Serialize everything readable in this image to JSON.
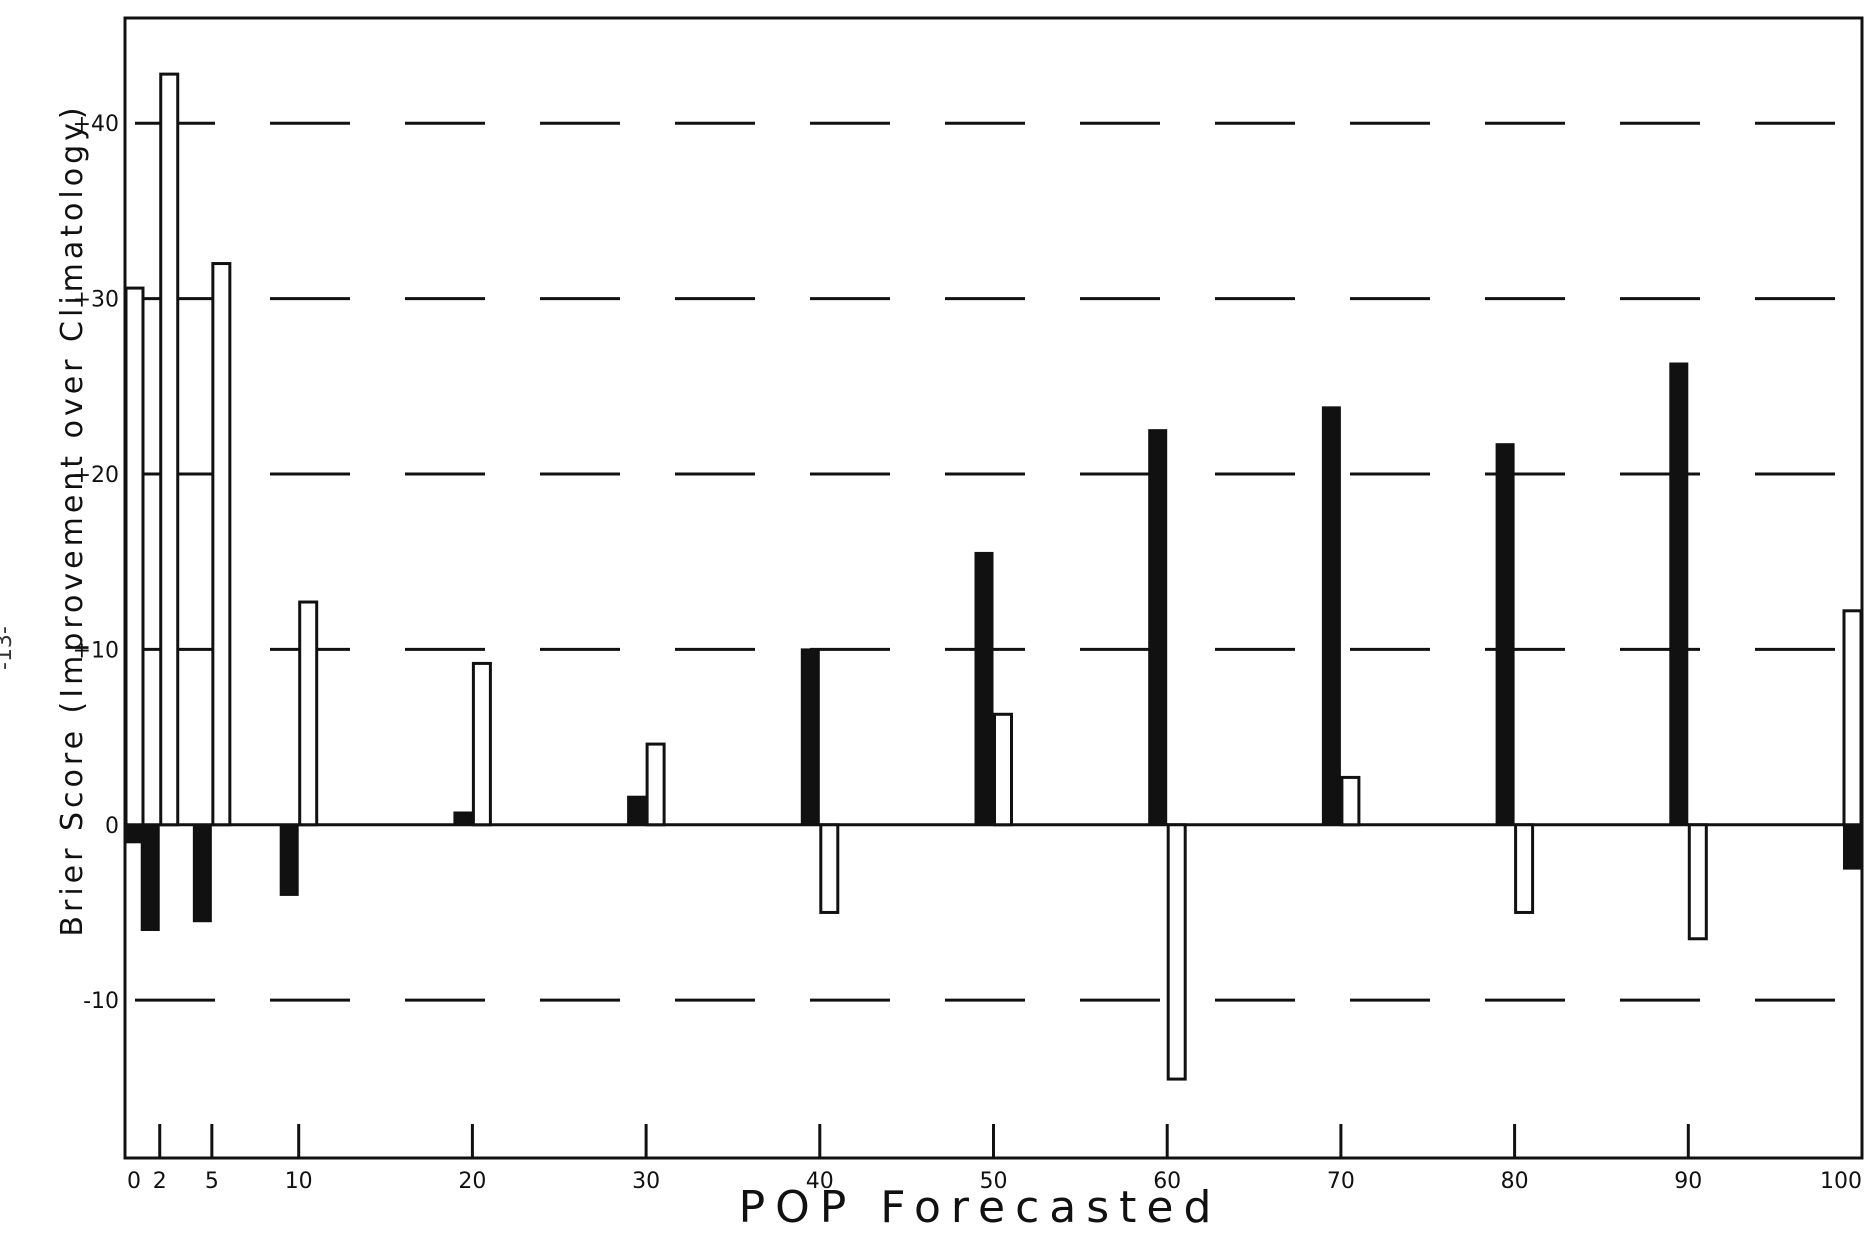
{
  "page_number": "-13-",
  "chart_data": {
    "type": "bar",
    "title": "",
    "xlabel": "POP Forecasted",
    "ylabel": "Brier Score (Improvement over Climatology)",
    "ylim": [
      -19,
      46
    ],
    "categories": [
      "0",
      "2",
      "5",
      "10",
      "20",
      "30",
      "40",
      "50",
      "60",
      "70",
      "80",
      "90",
      "100"
    ],
    "x_positions": [
      0,
      2,
      5,
      10,
      20,
      30,
      40,
      50,
      60,
      70,
      80,
      90,
      100
    ],
    "xlim": [
      0,
      100
    ],
    "y_ticks": [
      40,
      30,
      20,
      10,
      0,
      -10
    ],
    "y_tick_labels": [
      "+40",
      "+30",
      "+20",
      "+10",
      "0",
      "-10"
    ],
    "grid": "dashed horizontal lines at +40, +30, +20, +10, -10",
    "series": [
      {
        "color": "#111111",
        "values": [
          -1,
          -6,
          -5.5,
          -4,
          0.7,
          1.6,
          10,
          15.5,
          22.5,
          23.8,
          21.7,
          26.3,
          -2.5
        ]
      },
      {
        "color": "#ffffff",
        "values": [
          30.6,
          42.8,
          32,
          12.7,
          9.2,
          4.6,
          -5,
          6.3,
          -14.5,
          2.7,
          -5,
          -6.5,
          12.2
        ]
      }
    ]
  }
}
